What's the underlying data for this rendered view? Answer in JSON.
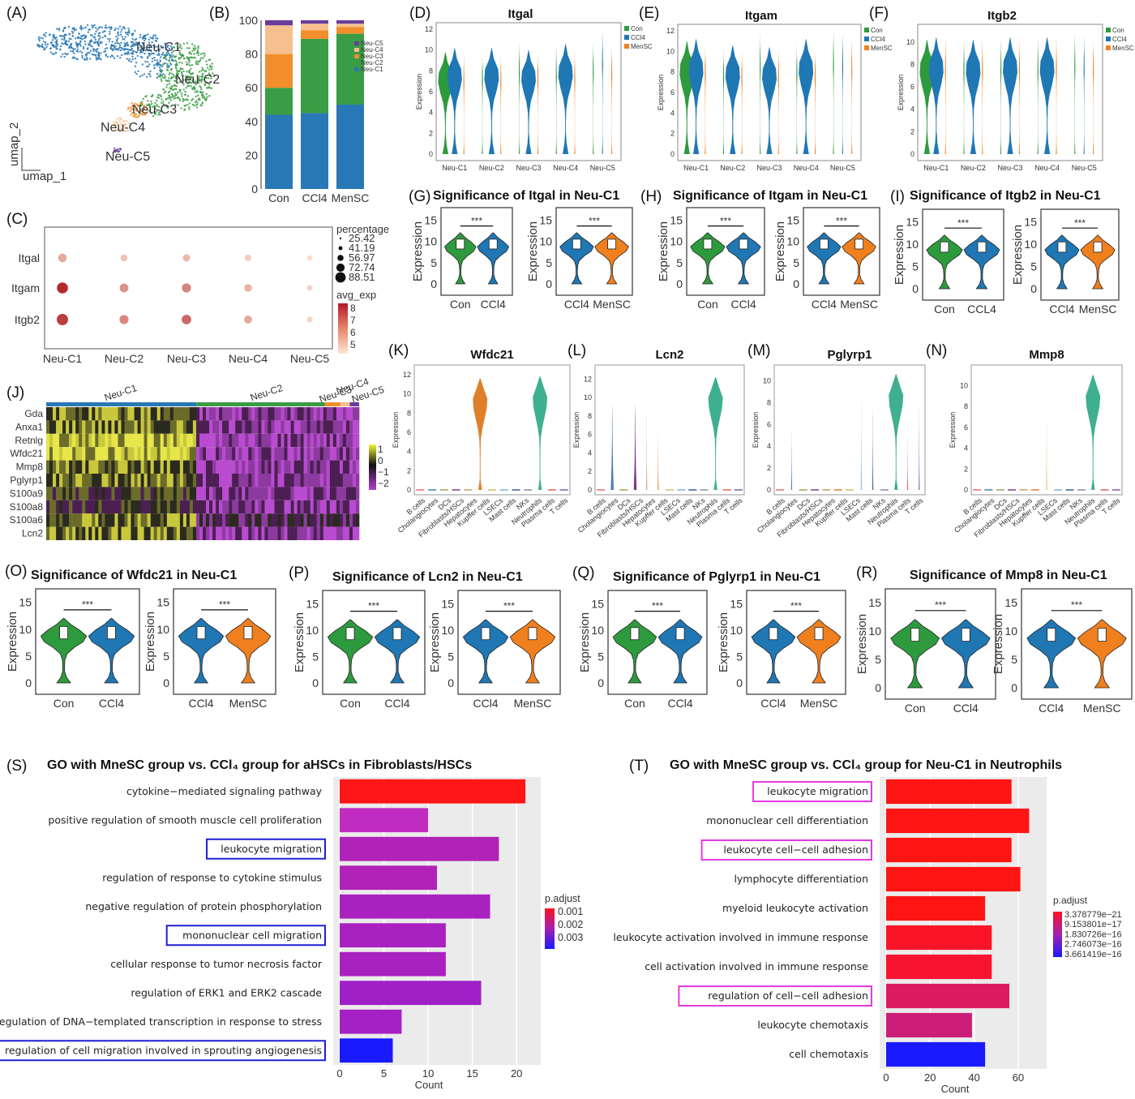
{
  "panel_labels": [
    "(A)",
    "(B)",
    "(C)",
    "(D)",
    "(E)",
    "(F)",
    "(G)",
    "(H)",
    "(I)",
    "(J)",
    "(K)",
    "(L)",
    "(M)",
    "(N)",
    "(O)",
    "(P)",
    "(Q)",
    "(R)",
    "(S)",
    "(T)"
  ],
  "colors": {
    "con": "#2e9a3e",
    "ccl4": "#1f77b4",
    "mensc": "#f07f1e",
    "c1": "#2878b5",
    "c2": "#3a9c45",
    "c3": "#f28e2b",
    "c4": "#f6c08e",
    "c5": "#6a3d9a"
  },
  "chart_data": [
    {
      "id": "A",
      "type": "scatter",
      "xlabel": "umap_1",
      "ylabel": "umap_2",
      "clusters": [
        "Neu-C1",
        "Neu-C2",
        "Neu-C3",
        "Neu-C4",
        "Neu-C5"
      ]
    },
    {
      "id": "B",
      "type": "bar",
      "stacked": true,
      "categories": [
        "Con",
        "CCl4",
        "MenSC"
      ],
      "ylim": [
        0,
        100
      ],
      "yticks": [
        "0",
        "20",
        "40",
        "60",
        "80",
        "100"
      ],
      "series": [
        {
          "name": "Neu-C1",
          "values": [
            44,
            45,
            50
          ]
        },
        {
          "name": "Neu-C2",
          "values": [
            16,
            44,
            42
          ]
        },
        {
          "name": "Neu-C3",
          "values": [
            20,
            5,
            4
          ]
        },
        {
          "name": "Neu-C4",
          "values": [
            17,
            4,
            2
          ]
        },
        {
          "name": "Neu-C5",
          "values": [
            3,
            2,
            2
          ]
        }
      ],
      "legend": [
        "Neu-C5",
        "Neu-C4",
        "Neu-C3",
        "Neu-C2",
        "Neu-C1"
      ]
    },
    {
      "id": "C",
      "type": "scatter",
      "subtype": "dotplot",
      "genes": [
        "Itgal",
        "Itgam",
        "Itgb2"
      ],
      "clusters": [
        "Neu-C1",
        "Neu-C2",
        "Neu-C3",
        "Neu-C4",
        "Neu-C5"
      ],
      "size_title": "percentage",
      "size_levels": [
        "25.42",
        "41.19",
        "56.97",
        "72.74",
        "88.51"
      ],
      "color_title": "avg_exp",
      "color_ticks": [
        "8",
        "7",
        "6",
        "5"
      ],
      "avg_exp": [
        [
          5.6,
          5.1,
          5.3,
          4.9,
          4.6
        ],
        [
          8.0,
          6.0,
          6.3,
          5.4,
          4.8
        ],
        [
          7.6,
          6.2,
          6.8,
          5.6,
          4.8
        ]
      ],
      "pct": [
        [
          60,
          45,
          48,
          40,
          30
        ],
        [
          85,
          62,
          65,
          52,
          32
        ],
        [
          88,
          66,
          70,
          55,
          33
        ]
      ]
    },
    {
      "id": "D",
      "type": "violin",
      "title": "Itgal",
      "ylabel": "Expression",
      "ymax": 12,
      "yticks": [
        "0",
        "2",
        "4",
        "6",
        "8",
        "10",
        "12"
      ],
      "categories": [
        "Neu-C1",
        "Neu-C2",
        "Neu-C3",
        "Neu-C4",
        "Neu-C5"
      ],
      "legend": [
        "Con",
        "CCl4",
        "MenSC"
      ]
    },
    {
      "id": "E",
      "type": "violin",
      "title": "Itgam",
      "ylabel": "Expression",
      "ymax": 12,
      "yticks": [
        "0",
        "2",
        "4",
        "6",
        "8",
        "10",
        "12"
      ],
      "categories": [
        "Neu-C1",
        "Neu-C2",
        "Neu-C3",
        "Neu-C4",
        "Neu-C5"
      ],
      "legend": [
        "Con",
        "CCl4",
        "MenSC"
      ]
    },
    {
      "id": "F",
      "type": "violin",
      "title": "Itgb2",
      "ylabel": "Expression",
      "ymax": 11,
      "yticks": [
        "0",
        "2",
        "4",
        "6",
        "8",
        "10"
      ],
      "categories": [
        "Neu-C1",
        "Neu-C2",
        "Neu-C3",
        "Neu-C4",
        "Neu-C5"
      ],
      "legend": [
        "Con",
        "CCl4",
        "MenSC"
      ]
    },
    {
      "id": "G",
      "type": "violin",
      "title": "Significance of Itgal in Neu-C1",
      "ylabel": "Expression",
      "yticks": [
        "0",
        "5",
        "10",
        "15"
      ],
      "pairs": [
        [
          "Con",
          "CCl4"
        ],
        [
          "CCl4",
          "MenSC"
        ]
      ],
      "sig": "***"
    },
    {
      "id": "H",
      "type": "violin",
      "title": "Significance of Itgam  in Neu-C1",
      "ylabel": "Expression",
      "yticks": [
        "0",
        "5",
        "10",
        "15"
      ],
      "pairs": [
        [
          "Con",
          "CCl4"
        ],
        [
          "CCl4",
          "MenSC"
        ]
      ],
      "sig": "***"
    },
    {
      "id": "I",
      "type": "violin",
      "title": "Significance of Itgb2 in Neu-C1",
      "ylabel": "Expression",
      "yticks": [
        "0",
        "5",
        "10",
        "15"
      ],
      "pairs": [
        [
          "Con",
          "CCL4"
        ],
        [
          "CCl4",
          "MenSC"
        ]
      ],
      "sig": "***"
    },
    {
      "id": "J",
      "type": "heatmap",
      "genes": [
        "Gda",
        "Anxa1",
        "Retnlg",
        "Wfdc21",
        "Mmp8",
        "Pglyrp1",
        "S100a9",
        "S100a8",
        "S100a6",
        "Lcn2"
      ],
      "clusters": [
        "Neu-C1",
        "Neu-C2",
        "Neu-C3",
        "Neu-C4",
        "Neu-C5"
      ],
      "cluster_fraction": [
        0.48,
        0.41,
        0.05,
        0.03,
        0.03
      ],
      "scale_ticks": [
        "1",
        "0",
        "−1",
        "−2"
      ]
    },
    {
      "id": "K",
      "type": "violin",
      "title": "Wfdc21",
      "ylabel": "Expression",
      "yticks": [
        "0",
        "2",
        "4",
        "6",
        "8",
        "10",
        "12"
      ],
      "peaks": [
        0,
        0,
        0,
        0,
        0,
        11.6,
        0,
        0,
        0,
        0,
        11.8,
        0,
        0
      ]
    },
    {
      "id": "L",
      "type": "violin",
      "title": "Lcn2",
      "ylabel": "Expression",
      "yticks": [
        "0",
        "2",
        "4",
        "6",
        "8",
        "10",
        "12"
      ],
      "peaks": [
        0.1,
        9.2,
        0,
        9.2,
        8.4,
        6.0,
        0,
        0,
        0,
        0,
        12.2,
        0,
        0
      ]
    },
    {
      "id": "M",
      "type": "violin",
      "title": "Pglyrp1",
      "ylabel": "Expression",
      "yticks": [
        "0",
        "2",
        "4",
        "6",
        "8",
        "10"
      ],
      "peaks": [
        0,
        5.4,
        0,
        0,
        0,
        0,
        0,
        8.2,
        7.6,
        0,
        10.6,
        4.6,
        7.4
      ]
    },
    {
      "id": "N",
      "type": "violin",
      "title": "Mmp8",
      "ylabel": "Expression",
      "yticks": [
        "0",
        "2",
        "4",
        "6",
        "8",
        "10"
      ],
      "peaks": [
        0,
        0,
        0,
        0,
        0,
        0,
        6.8,
        0,
        0,
        0,
        11.0,
        0,
        0
      ]
    },
    {
      "id": "O",
      "type": "violin",
      "title": "Significance of Wfdc21 in Neu-C1",
      "ylabel": "Expression",
      "yticks": [
        "0",
        "5",
        "10",
        "15"
      ],
      "pairs": [
        [
          "Con",
          "CCl4"
        ],
        [
          "CCl4",
          "MenSC"
        ]
      ],
      "sig": "***"
    },
    {
      "id": "P",
      "type": "violin",
      "title": "Significance of Lcn2 in Neu-C1",
      "ylabel": "Expression",
      "yticks": [
        "0",
        "5",
        "10",
        "15"
      ],
      "pairs": [
        [
          "Con",
          "CCl4"
        ],
        [
          "CCl4",
          "MenSC"
        ]
      ],
      "sig": "***"
    },
    {
      "id": "Q",
      "type": "violin",
      "title": "Significance of Pglyrp1 in Neu-C1",
      "ylabel": "Expression",
      "yticks": [
        "0",
        "5",
        "10",
        "15"
      ],
      "pairs": [
        [
          "Con",
          "CCl4"
        ],
        [
          "CCl4",
          "MenSC"
        ]
      ],
      "sig": "***"
    },
    {
      "id": "R",
      "type": "violin",
      "title": "Significance of Mmp8 in Neu-C1",
      "ylabel": "Expression",
      "yticks": [
        "0",
        "5",
        "10",
        "15"
      ],
      "pairs": [
        [
          "Con",
          "CCl4"
        ],
        [
          "CCl4",
          "MenSC"
        ]
      ],
      "sig": "***"
    },
    {
      "id": "S",
      "type": "bar",
      "orientation": "horizontal",
      "title": "GO with MneSC group vs. CCl₄ group for aHSCs in Fibroblasts/HSCs",
      "xlabel": "Count",
      "xlim": [
        0,
        22
      ],
      "xticks": [
        "0",
        "5",
        "10",
        "15",
        "20"
      ],
      "categories": [
        "cytokine−mediated signaling pathway",
        "positive regulation of smooth muscle cell proliferation",
        "leukocyte migration",
        "regulation of response to cytokine stimulus",
        "negative regulation of protein phosphorylation",
        "mononuclear cell migration",
        "cellular response to tumor necrosis factor",
        "regulation of ERK1 and ERK2 cascade",
        "regulation of DNA−templated transcription in response to stress",
        "regulation of cell migration involved in sprouting angiogenesis"
      ],
      "values": [
        21,
        10,
        18,
        11,
        17,
        12,
        12,
        16,
        7,
        6
      ],
      "p_adjust": [
        0.0008,
        0.0015,
        0.0016,
        0.0017,
        0.0017,
        0.0018,
        0.0018,
        0.002,
        0.0019,
        0.0032
      ],
      "highlighted": [
        2,
        5,
        9
      ],
      "legend_title": "p.adjust",
      "legend_ticks": [
        "0.001",
        "0.002",
        "0.003"
      ]
    },
    {
      "id": "T",
      "type": "bar",
      "orientation": "horizontal",
      "title": "GO with MneSC group vs. CCl₄ group for Neu-C1 in Neutrophils",
      "xlabel": "Count",
      "xlim": [
        0,
        70
      ],
      "xticks": [
        "0",
        "20",
        "40",
        "60"
      ],
      "categories": [
        "leukocyte migration",
        "mononuclear cell differentiation",
        "leukocyte cell−cell adhesion",
        "lymphocyte differentiation",
        "myeloid leukocyte activation",
        "leukocyte activation involved in immune response",
        "cell activation involved in immune response",
        "regulation of cell−cell adhesion",
        "leukocyte chemotaxis",
        "cell chemotaxis"
      ],
      "values": [
        57,
        65,
        57,
        61,
        45,
        48,
        48,
        56,
        39,
        45
      ],
      "highlighted": [
        0,
        2,
        7
      ],
      "legend_title": "p.adjust",
      "legend_ticks": [
        "3.378779e−21",
        "9.153801e−17",
        "1.830726e−16",
        "2.746073e−16",
        "3.661419e−16"
      ]
    }
  ]
}
